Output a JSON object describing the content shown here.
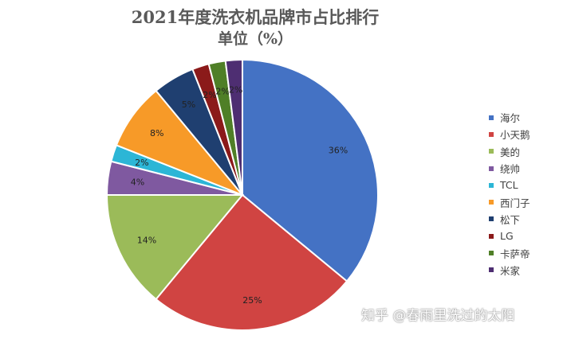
{
  "chart_data": {
    "type": "pie",
    "title": "2021年度洗衣机品牌市占比排行",
    "subtitle": "单位（%）",
    "labels": [
      "海尔",
      "小天鹅",
      "美的",
      "绕帅",
      "TCL",
      "西门子",
      "松下",
      "LG",
      "卡萨帝",
      "米家"
    ],
    "values": [
      36,
      25,
      14,
      4,
      2,
      8,
      5,
      2,
      2,
      2
    ],
    "data_labels": [
      "36%",
      "25%",
      "14%",
      "4%",
      "2%",
      "8%",
      "5%",
      "2%",
      "2%",
      "2%"
    ],
    "colors": [
      "#4472C4",
      "#D04442",
      "#9BBB59",
      "#7F59A0",
      "#2CB6D6",
      "#F79A28",
      "#1F3F70",
      "#8B1A1A",
      "#4F7F27",
      "#4E2E72"
    ],
    "legend_position": "right",
    "start": "12 o'clock",
    "direction": "clockwise"
  },
  "watermark": "知乎 @春雨里洗过的太阳"
}
